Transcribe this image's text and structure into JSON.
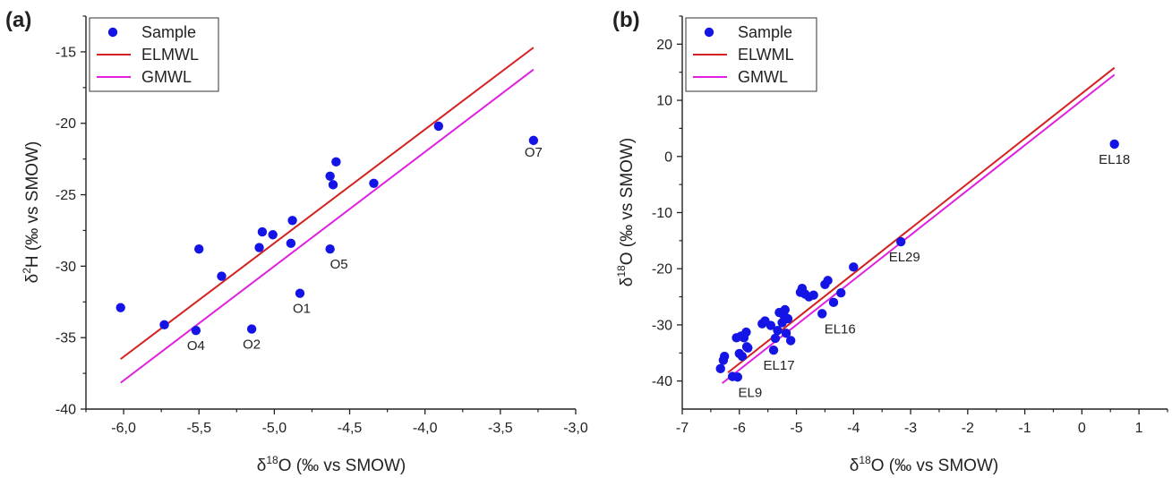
{
  "chart_data": [
    {
      "type": "scatter",
      "panel_label": "(a)",
      "xlabel": {
        "pre": "δ",
        "sup": "18",
        "post": "O (‰ vs SMOW)"
      },
      "ylabel": {
        "pre": "δ",
        "sup": "2",
        "post": "H (‰ vs SMOW)"
      },
      "xlim": [
        -6.25,
        -3.0
      ],
      "ylim": [
        -40,
        -12.5
      ],
      "xticks": [
        -6.0,
        -5.5,
        -5.0,
        -4.5,
        -4.0,
        -3.5,
        -3.0
      ],
      "xtick_labels": [
        "-6,0",
        "-5,5",
        "-5,0",
        "-4,5",
        "-4,0",
        "-3,5",
        "-3,0"
      ],
      "yticks": [
        -40,
        -35,
        -30,
        -25,
        -20,
        -15
      ],
      "ytick_labels": [
        "-40",
        "-35",
        "-30",
        "-25",
        "-20",
        "-15"
      ],
      "series": [
        {
          "name": "Sample",
          "kind": "points",
          "color": "#1414e6",
          "points": [
            [
              -6.02,
              -32.9
            ],
            [
              -5.73,
              -34.1
            ],
            [
              -5.52,
              -34.5
            ],
            [
              -5.5,
              -28.8
            ],
            [
              -5.35,
              -30.7
            ],
            [
              -5.15,
              -34.4
            ],
            [
              -5.1,
              -28.7
            ],
            [
              -5.08,
              -27.6
            ],
            [
              -5.01,
              -27.8
            ],
            [
              -4.89,
              -28.4
            ],
            [
              -4.88,
              -26.8
            ],
            [
              -4.83,
              -31.9
            ],
            [
              -4.63,
              -28.8
            ],
            [
              -4.63,
              -23.7
            ],
            [
              -4.61,
              -24.3
            ],
            [
              -4.59,
              -22.7
            ],
            [
              -4.34,
              -24.2
            ],
            [
              -3.91,
              -20.2
            ],
            [
              -3.28,
              -21.2
            ]
          ]
        },
        {
          "name": "ELMWL",
          "kind": "line",
          "color": "#d42020",
          "x": [
            -6.02,
            -3.28
          ],
          "y": [
            -36.5,
            -14.7
          ]
        },
        {
          "name": "GMWL",
          "kind": "line",
          "color": "#e020e0",
          "x": [
            -6.02,
            -3.28
          ],
          "y": [
            -38.16,
            -16.24
          ]
        }
      ],
      "annotations": [
        {
          "text": "O7",
          "x": -3.28,
          "y": -21.2
        },
        {
          "text": "O5",
          "x": -4.63,
          "y": -28.8
        },
        {
          "text": "O1",
          "x": -4.83,
          "y": -31.9
        },
        {
          "text": "O4",
          "x": -5.52,
          "y": -34.5
        },
        {
          "text": "O2",
          "x": -5.15,
          "y": -34.4
        }
      ],
      "legend": [
        "Sample",
        "ELMWL",
        "GMWL"
      ],
      "legend_position": "top-left",
      "grid": false
    },
    {
      "type": "scatter",
      "panel_label": "(b)",
      "xlabel": {
        "pre": "δ",
        "sup": "18",
        "post": "O (‰ vs SMOW)"
      },
      "ylabel": {
        "pre": "δ",
        "sup": "18",
        "post": "O (‰ vs SMOW)"
      },
      "xlim": [
        -7,
        1.5
      ],
      "ylim": [
        -45,
        25
      ],
      "xticks": [
        -7,
        -6,
        -5,
        -4,
        -3,
        -2,
        -1,
        0,
        1
      ],
      "xtick_labels": [
        "-7",
        "-6",
        "-5",
        "-4",
        "-3",
        "-2",
        "-1",
        "0",
        "1"
      ],
      "yticks": [
        -40,
        -30,
        -20,
        -10,
        0,
        10,
        20
      ],
      "ytick_labels": [
        "-40",
        "-30",
        "-20",
        "-10",
        "0",
        "10",
        "20"
      ],
      "series": [
        {
          "name": "Sample",
          "kind": "points",
          "color": "#1414e6",
          "points": [
            [
              -6.33,
              -37.8
            ],
            [
              -6.28,
              -36.3
            ],
            [
              -6.26,
              -35.6
            ],
            [
              -6.12,
              -39.2
            ],
            [
              -6.05,
              -32.3
            ],
            [
              -6.03,
              -39.3
            ],
            [
              -6.0,
              -35.1
            ],
            [
              -5.97,
              -32.0
            ],
            [
              -5.95,
              -35.6
            ],
            [
              -5.92,
              -32.3
            ],
            [
              -5.88,
              -31.3
            ],
            [
              -5.87,
              -33.9
            ],
            [
              -5.85,
              -34.1
            ],
            [
              -5.6,
              -29.8
            ],
            [
              -5.55,
              -29.3
            ],
            [
              -5.45,
              -30.1
            ],
            [
              -5.4,
              -34.5
            ],
            [
              -5.37,
              -32.4
            ],
            [
              -5.33,
              -31.0
            ],
            [
              -5.3,
              -27.8
            ],
            [
              -5.25,
              -29.6
            ],
            [
              -5.22,
              -28.3
            ],
            [
              -5.2,
              -27.3
            ],
            [
              -5.18,
              -31.5
            ],
            [
              -5.15,
              -28.9
            ],
            [
              -5.1,
              -32.8
            ],
            [
              -4.93,
              -24.2
            ],
            [
              -4.9,
              -23.5
            ],
            [
              -4.85,
              -24.5
            ],
            [
              -4.78,
              -25.0
            ],
            [
              -4.7,
              -24.7
            ],
            [
              -4.55,
              -28.0
            ],
            [
              -4.5,
              -22.8
            ],
            [
              -4.45,
              -22.1
            ],
            [
              -4.35,
              -26.0
            ],
            [
              -4.22,
              -24.3
            ],
            [
              -4.0,
              -19.7
            ],
            [
              -3.17,
              -15.2
            ],
            [
              0.57,
              2.2
            ]
          ]
        },
        {
          "name": "ELWML",
          "kind": "line",
          "color": "#d42020",
          "x": [
            -6.2,
            0.57
          ],
          "y": [
            -38.5,
            15.8
          ]
        },
        {
          "name": "GMWL",
          "kind": "line",
          "color": "#e020e0",
          "x": [
            -6.3,
            0.57
          ],
          "y": [
            -40.4,
            14.56
          ]
        }
      ],
      "annotations": [
        {
          "text": "EL18",
          "x": 0.57,
          "y": 2.2
        },
        {
          "text": "EL29",
          "x": -3.17,
          "y": -15.2
        },
        {
          "text": "EL16",
          "x": -4.55,
          "y": -28.0
        },
        {
          "text": "EL17",
          "x": -5.4,
          "y": -34.5
        },
        {
          "text": "EL9",
          "x": -6.03,
          "y": -39.3
        }
      ],
      "legend": [
        "Sample",
        "ELWML",
        "GMWL"
      ],
      "legend_position": "top-left",
      "grid": false
    }
  ]
}
